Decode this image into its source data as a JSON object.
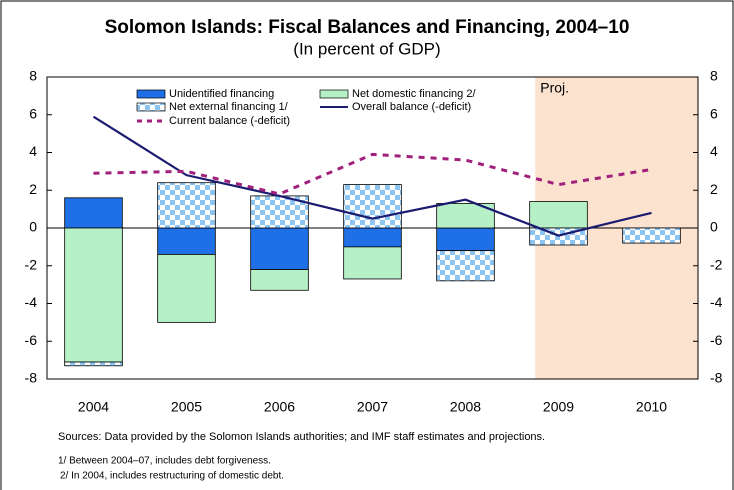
{
  "chart_data": {
    "type": "bar",
    "title": "Solomon Islands: Fiscal Balances and Financing, 2004–10",
    "subtitle": "(In percent of GDP)",
    "categories": [
      "2004",
      "2005",
      "2006",
      "2007",
      "2008",
      "2009",
      "2010"
    ],
    "series": [
      {
        "name": "Unidentified financing",
        "kind": "bar",
        "color": "#1f6fe6",
        "values": [
          1.6,
          -1.4,
          -2.2,
          -1.0,
          -1.2,
          0,
          0
        ]
      },
      {
        "name": "Net domestic financing 2/",
        "kind": "bar",
        "color": "#b6f0c6",
        "values": [
          -7.1,
          -3.6,
          -1.1,
          -1.7,
          1.3,
          1.4,
          0
        ]
      },
      {
        "name": "Net external financing 1/",
        "kind": "bar",
        "color": "#8cc4f2",
        "pattern": "checker",
        "values": [
          -0.2,
          2.4,
          1.7,
          2.3,
          -1.6,
          -0.9,
          -0.8
        ]
      },
      {
        "name": "Overall balance (-deficit)",
        "kind": "line",
        "color": "#1b1b72",
        "values": [
          5.9,
          2.8,
          1.7,
          0.5,
          1.5,
          -0.4,
          0.8
        ]
      },
      {
        "name": "Current balance (-deficit)",
        "kind": "line",
        "color": "#a0207c",
        "dash": true,
        "values": [
          2.9,
          3.0,
          1.8,
          3.9,
          3.6,
          2.3,
          3.1
        ]
      }
    ],
    "projection": {
      "label": "Proj.",
      "from": "2009",
      "color": "#fbe3cf"
    },
    "ylim": [
      -8,
      8
    ],
    "yticks": [
      -8,
      -6,
      -4,
      -2,
      0,
      2,
      4,
      6,
      8
    ],
    "y2lim": [
      -8,
      8
    ],
    "y2ticks": [
      -8,
      -6,
      -4,
      -2,
      0,
      2,
      4,
      6,
      8
    ],
    "sources": "Sources: Data provided by the Solomon Islands authorities; and IMF staff estimates and projections.",
    "notes": [
      "1/ Between 2004–07, includes debt forgiveness.",
      "2/ In 2004, includes restructuring of domestic debt."
    ]
  }
}
